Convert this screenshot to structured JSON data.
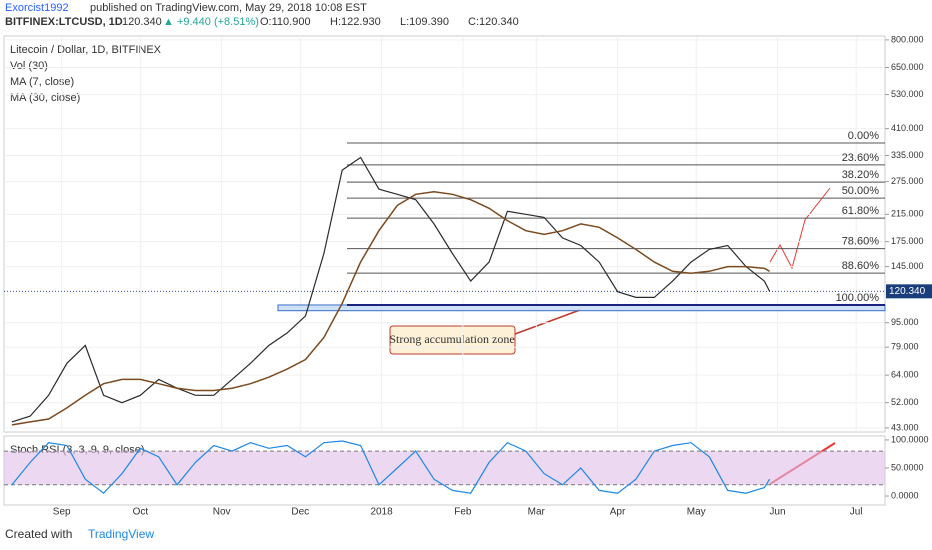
{
  "header": {
    "author": "Exorcist1992",
    "published": "published on TradingView.com, May 29, 2018 10:08 EST",
    "symbol": "BITFINEX:LTCUSD, 1D",
    "last": "120.340",
    "change": "▲ +9.440 (+8.51%)",
    "open": "O:110.900",
    "high": "H:122.930",
    "low": "L:109.390",
    "close": "C:120.340"
  },
  "chart_data": {
    "type": "line",
    "title": "Litecoin / Dollar, 1D, BITFINEX",
    "indicators": [
      "Vol (30)",
      "MA (7, close)",
      "MA (30, close)"
    ],
    "log_scale": true,
    "x": [
      -7,
      0,
      7,
      14,
      21,
      28,
      35,
      42,
      49,
      56,
      63,
      70,
      77,
      84,
      91,
      98,
      105,
      112,
      119,
      126,
      133,
      140,
      147,
      154,
      161,
      168,
      175,
      182,
      189,
      196,
      203,
      210,
      217,
      224,
      231,
      238,
      245,
      252,
      259,
      266,
      273,
      280,
      282
    ],
    "xlim": [
      -10,
      326
    ],
    "xticks": [
      {
        "value": 12,
        "label": "Sep"
      },
      {
        "value": 42,
        "label": "Oct"
      },
      {
        "value": 73,
        "label": "Nov"
      },
      {
        "value": 103,
        "label": "Dec"
      },
      {
        "value": 134,
        "label": "2018"
      },
      {
        "value": 165,
        "label": "Feb"
      },
      {
        "value": 193,
        "label": "Mar"
      },
      {
        "value": 224,
        "label": "Apr"
      },
      {
        "value": 254,
        "label": "May"
      },
      {
        "value": 285,
        "label": "Jun"
      },
      {
        "value": 315,
        "label": "Jul"
      }
    ],
    "ylim": [
      41.7,
      824
    ],
    "yticks": [
      {
        "value": 800,
        "label": "800.000"
      },
      {
        "value": 650,
        "label": "650.000"
      },
      {
        "value": 530,
        "label": "530.000"
      },
      {
        "value": 410,
        "label": "410.000"
      },
      {
        "value": 335,
        "label": "335.000"
      },
      {
        "value": 275,
        "label": "275.000"
      },
      {
        "value": 215,
        "label": "215.000"
      },
      {
        "value": 175,
        "label": "175.000"
      },
      {
        "value": 145,
        "label": "145.000"
      },
      {
        "value": 95,
        "label": "95.000"
      },
      {
        "value": 79,
        "label": "79.000"
      },
      {
        "value": 64,
        "label": "64.000"
      },
      {
        "value": 52,
        "label": "52.000"
      },
      {
        "value": 43,
        "label": "43.000"
      }
    ],
    "series": [
      {
        "color": "#2b2b2b",
        "values": [
          45,
          47,
          55,
          70,
          80,
          55,
          52,
          55,
          62,
          58,
          55,
          55,
          62,
          70,
          80,
          88,
          100,
          160,
          300,
          330,
          260,
          250,
          240,
          200,
          160,
          130,
          150,
          220,
          215,
          210,
          180,
          170,
          150,
          120,
          115,
          115,
          130,
          150,
          165,
          170,
          145,
          130,
          120.34
        ]
      },
      {
        "color": "#7b4a1e",
        "values": [
          44,
          45,
          46,
          50,
          55,
          60,
          62,
          62,
          60,
          58,
          57,
          57,
          58,
          60,
          63,
          67,
          72,
          85,
          110,
          150,
          190,
          230,
          250,
          255,
          250,
          240,
          225,
          205,
          190,
          185,
          190,
          200,
          195,
          180,
          165,
          150,
          140,
          138,
          140,
          145,
          145,
          143,
          140
        ]
      }
    ],
    "current_price": {
      "value": 120.34,
      "label": "120.340"
    },
    "fib_levels": [
      {
        "value": 368,
        "label": "0.00%"
      },
      {
        "value": 312,
        "label": "23.60%"
      },
      {
        "value": 274,
        "label": "38.20%"
      },
      {
        "value": 243,
        "label": "50.00%"
      },
      {
        "value": 209,
        "label": "61.80%"
      },
      {
        "value": 166,
        "label": "78.60%"
      },
      {
        "value": 138,
        "label": "88.60%"
      },
      {
        "value": 108.6,
        "label": "100.00%"
      }
    ],
    "zone": [
      104,
      108.6
    ],
    "annotation": "Strong accumulation zone",
    "stoch": {
      "title": "Stoch RSI (3, 3, 9, 9, close)",
      "ylim": [
        -16,
        107
      ],
      "bands": [
        80,
        20
      ],
      "color": "#1e88e5",
      "yticks": [
        {
          "value": 100,
          "label": "100.0000"
        },
        {
          "value": 50,
          "label": "50.0000"
        },
        {
          "value": 0,
          "label": "0.0000"
        }
      ],
      "values": [
        20,
        60,
        95,
        90,
        30,
        5,
        40,
        85,
        70,
        20,
        60,
        90,
        80,
        95,
        85,
        90,
        70,
        95,
        98,
        90,
        20,
        50,
        80,
        30,
        10,
        5,
        60,
        95,
        80,
        40,
        20,
        50,
        10,
        5,
        30,
        80,
        90,
        95,
        70,
        10,
        5,
        15,
        30
      ]
    }
  },
  "footer": {
    "text": "Created with",
    "brand": "TradingView"
  }
}
